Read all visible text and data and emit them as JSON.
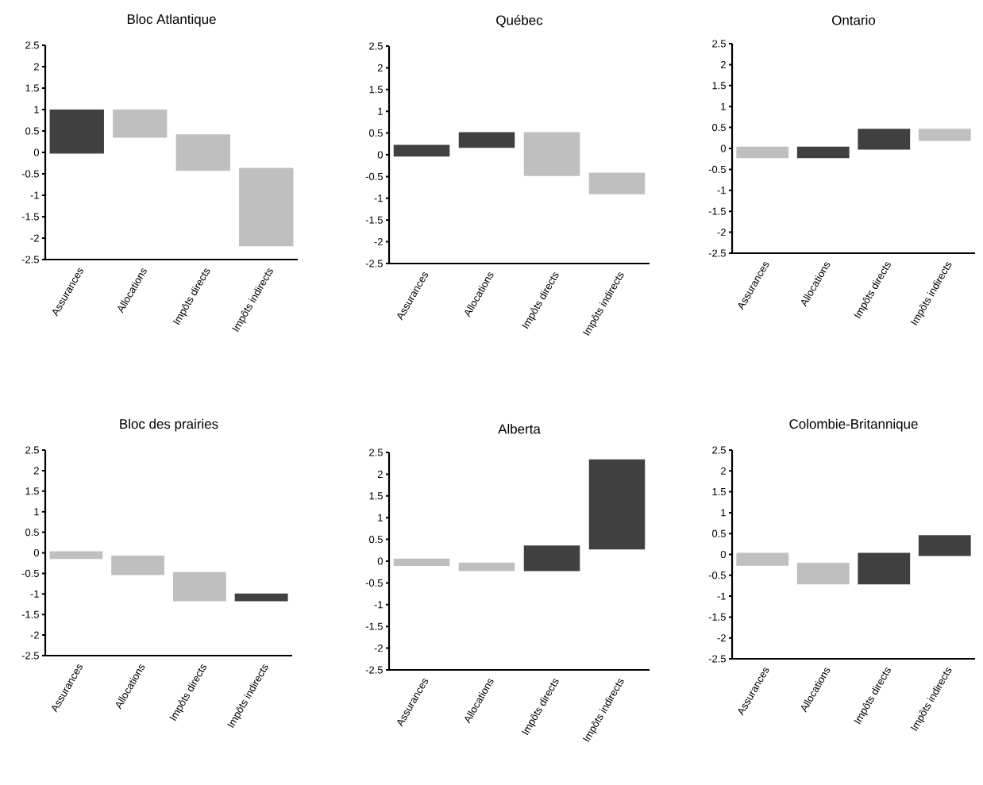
{
  "chart_data": [
    {
      "type": "bar",
      "title": "Bloc Atlantique",
      "categories": [
        "Assurances",
        "Allocations",
        "Impôts directs",
        "Impôts indirects"
      ],
      "base": [
        -0.03,
        1.0,
        0.42,
        -0.36
      ],
      "values": [
        1.03,
        -0.66,
        -0.85,
        -1.83
      ],
      "colors": [
        "#404040",
        "#bfbfbf",
        "#bfbfbf",
        "#bfbfbf"
      ],
      "ylim": [
        -2.5,
        2.5
      ],
      "yticks": [
        -2.5,
        -2,
        -1.5,
        -1,
        -0.5,
        0,
        0.5,
        1,
        1.5,
        2,
        2.5
      ]
    },
    {
      "type": "bar",
      "title": "Québec",
      "categories": [
        "Assurances",
        "Allocations",
        "Impôts directs",
        "Impôts indirects"
      ],
      "base": [
        -0.04,
        0.16,
        0.52,
        -0.41
      ],
      "values": [
        0.27,
        0.36,
        -1.01,
        -0.5
      ],
      "colors": [
        "#404040",
        "#404040",
        "#bfbfbf",
        "#bfbfbf"
      ],
      "ylim": [
        -2.5,
        2.5
      ],
      "yticks": [
        -2.5,
        -2,
        -1.5,
        -1,
        -0.5,
        0,
        0.5,
        1,
        1.5,
        2,
        2.5
      ]
    },
    {
      "type": "bar",
      "title": "Ontario",
      "categories": [
        "Assurances",
        "Allocations",
        "Impôts directs",
        "Impôts indirects"
      ],
      "base": [
        0.04,
        -0.23,
        -0.03,
        0.47
      ],
      "values": [
        -0.27,
        0.27,
        0.5,
        -0.29
      ],
      "colors": [
        "#bfbfbf",
        "#404040",
        "#404040",
        "#bfbfbf"
      ],
      "ylim": [
        -2.5,
        2.5
      ],
      "yticks": [
        -2.5,
        -2,
        -1.5,
        -1,
        -0.5,
        0,
        0.5,
        1,
        1.5,
        2,
        2.5
      ]
    },
    {
      "type": "bar",
      "title": "Bloc des prairies",
      "categories": [
        "Assurances",
        "Allocations",
        "Impôts directs",
        "Impôts indirects"
      ],
      "base": [
        0.04,
        -0.07,
        -0.47,
        -1.18
      ],
      "values": [
        -0.19,
        -0.47,
        -0.71,
        0.19
      ],
      "colors": [
        "#bfbfbf",
        "#bfbfbf",
        "#bfbfbf",
        "#404040"
      ],
      "ylim": [
        -2.5,
        2.5
      ],
      "yticks": [
        -2.5,
        -2,
        -1.5,
        -1,
        -0.5,
        0,
        0.5,
        1,
        1.5,
        2,
        2.5
      ]
    },
    {
      "type": "bar",
      "title": "Alberta",
      "categories": [
        "Assurances",
        "Allocations",
        "Impôts directs",
        "Impôts indirects"
      ],
      "base": [
        0.06,
        -0.03,
        -0.23,
        0.27
      ],
      "values": [
        -0.17,
        -0.2,
        0.59,
        2.07
      ],
      "colors": [
        "#bfbfbf",
        "#bfbfbf",
        "#404040",
        "#404040"
      ],
      "ylim": [
        -2.5,
        2.5
      ],
      "yticks": [
        -2.5,
        -2,
        -1.5,
        -1,
        -0.5,
        0,
        0.5,
        1,
        1.5,
        2,
        2.5
      ]
    },
    {
      "type": "bar",
      "title": "Colombie-Britannique",
      "categories": [
        "Assurances",
        "Allocations",
        "Impôts directs",
        "Impôts indirects"
      ],
      "base": [
        0.04,
        -0.2,
        -0.72,
        -0.04
      ],
      "values": [
        -0.31,
        -0.52,
        0.76,
        0.5
      ],
      "colors": [
        "#bfbfbf",
        "#bfbfbf",
        "#404040",
        "#404040"
      ],
      "ylim": [
        -2.5,
        2.5
      ],
      "yticks": [
        -2.5,
        -2,
        -1.5,
        -1,
        -0.5,
        0,
        0.5,
        1,
        1.5,
        2,
        2.5
      ]
    }
  ]
}
